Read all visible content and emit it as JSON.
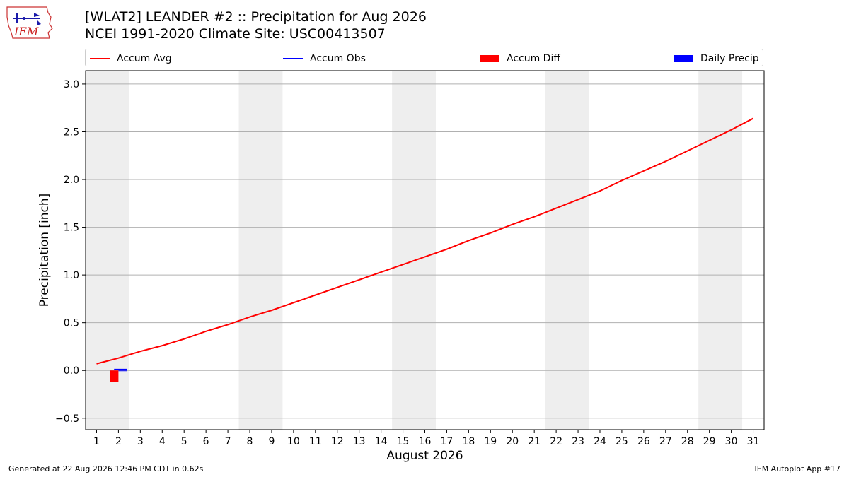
{
  "header": {
    "title_line1": "[WLAT2] LEANDER #2 :: Precipitation for Aug 2026",
    "title_line2": "NCEI 1991-2020 Climate Site: USC00413507",
    "logo_text": "IEM"
  },
  "colors": {
    "accum_avg": "#ff0000",
    "accum_obs": "#0000ff",
    "accum_diff": "#ff0000",
    "daily_precip": "#0000ff",
    "weekend_band": "#eeeeee",
    "grid": "#b0b0b0"
  },
  "footer": {
    "left": "Generated at 22 Aug 2026 12:46 PM CDT in 0.62s",
    "right": "IEM Autoplot App #17"
  },
  "chart_data": {
    "type": "line",
    "xlabel": "August 2026",
    "ylabel": "Precipitation [inch]",
    "xlim": [
      0.5,
      31.5
    ],
    "ylim": [
      -0.62,
      3.14
    ],
    "yticks": [
      -0.5,
      0.0,
      0.5,
      1.0,
      1.5,
      2.0,
      2.5,
      3.0
    ],
    "ytick_labels": [
      "−0.5",
      "0.0",
      "0.5",
      "1.0",
      "1.5",
      "2.0",
      "2.5",
      "3.0"
    ],
    "xticks": [
      1,
      2,
      3,
      4,
      5,
      6,
      7,
      8,
      9,
      10,
      11,
      12,
      13,
      14,
      15,
      16,
      17,
      18,
      19,
      20,
      21,
      22,
      23,
      24,
      25,
      26,
      27,
      28,
      29,
      30,
      31
    ],
    "grid": "horizontal",
    "legend_position": "top",
    "legend": [
      "Accum Avg",
      "Accum Obs",
      "Accum Diff",
      "Daily Precip"
    ],
    "weekend_bands": [
      [
        0.5,
        2.5
      ],
      [
        7.5,
        9.5
      ],
      [
        14.5,
        16.5
      ],
      [
        21.5,
        23.5
      ],
      [
        28.5,
        30.5
      ]
    ],
    "series": [
      {
        "name": "Accum Avg",
        "kind": "line",
        "x": [
          1,
          2,
          3,
          4,
          5,
          6,
          7,
          8,
          9,
          10,
          11,
          12,
          13,
          14,
          15,
          16,
          17,
          18,
          19,
          20,
          21,
          22,
          23,
          24,
          25,
          26,
          27,
          28,
          29,
          30,
          31
        ],
        "values": [
          0.07,
          0.13,
          0.2,
          0.26,
          0.33,
          0.41,
          0.48,
          0.56,
          0.63,
          0.71,
          0.79,
          0.87,
          0.95,
          1.03,
          1.11,
          1.19,
          1.27,
          1.36,
          1.44,
          1.53,
          1.61,
          1.7,
          1.79,
          1.88,
          1.99,
          2.09,
          2.19,
          2.3,
          2.41,
          2.52,
          2.64
        ]
      },
      {
        "name": "Accum Obs",
        "kind": "line",
        "x": [
          1.8,
          2.4
        ],
        "values": [
          0.01,
          0.01
        ]
      },
      {
        "name": "Accum Diff",
        "kind": "bar",
        "x": [
          1.8
        ],
        "values": [
          -0.12
        ]
      },
      {
        "name": "Daily Precip",
        "kind": "bar",
        "x": [
          2.2
        ],
        "values": [
          0.0
        ]
      }
    ]
  }
}
